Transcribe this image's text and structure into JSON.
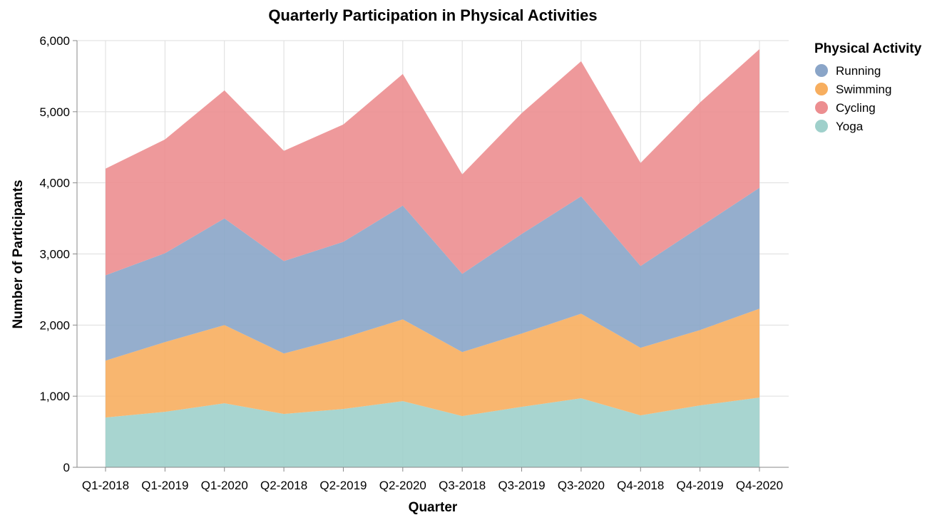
{
  "chart_data": {
    "type": "area",
    "stacked": true,
    "title": "Quarterly Participation in Physical Activities",
    "xlabel": "Quarter",
    "ylabel": "Number of Participants",
    "ylim": [
      0,
      6000
    ],
    "yticks": [
      0,
      1000,
      2000,
      3000,
      4000,
      5000,
      6000
    ],
    "ytick_labels": [
      "0",
      "1,000",
      "2,000",
      "3,000",
      "4,000",
      "5,000",
      "6,000"
    ],
    "grid": true,
    "legend_title": "Physical Activity",
    "legend_position": "right",
    "categories": [
      "Q1-2018",
      "Q1-2019",
      "Q1-2020",
      "Q2-2018",
      "Q2-2019",
      "Q2-2020",
      "Q3-2018",
      "Q3-2019",
      "Q3-2020",
      "Q4-2018",
      "Q4-2019",
      "Q4-2020"
    ],
    "series": [
      {
        "name": "Yoga",
        "color": "#9fd0cb",
        "values": [
          700,
          780,
          900,
          750,
          820,
          930,
          720,
          850,
          970,
          730,
          870,
          980
        ]
      },
      {
        "name": "Swimming",
        "color": "#f7ae5f",
        "values": [
          800,
          980,
          1100,
          850,
          1000,
          1150,
          900,
          1030,
          1190,
          950,
          1060,
          1250
        ]
      },
      {
        "name": "Running",
        "color": "#8aa5c8",
        "values": [
          1200,
          1250,
          1500,
          1300,
          1350,
          1600,
          1100,
          1400,
          1650,
          1150,
          1450,
          1700
        ]
      },
      {
        "name": "Cycling",
        "color": "#ec8e90",
        "values": [
          1500,
          1600,
          1800,
          1550,
          1650,
          1850,
          1400,
          1700,
          1900,
          1450,
          1750,
          1950
        ]
      }
    ],
    "legend_order": [
      "Running",
      "Swimming",
      "Cycling",
      "Yoga"
    ]
  }
}
